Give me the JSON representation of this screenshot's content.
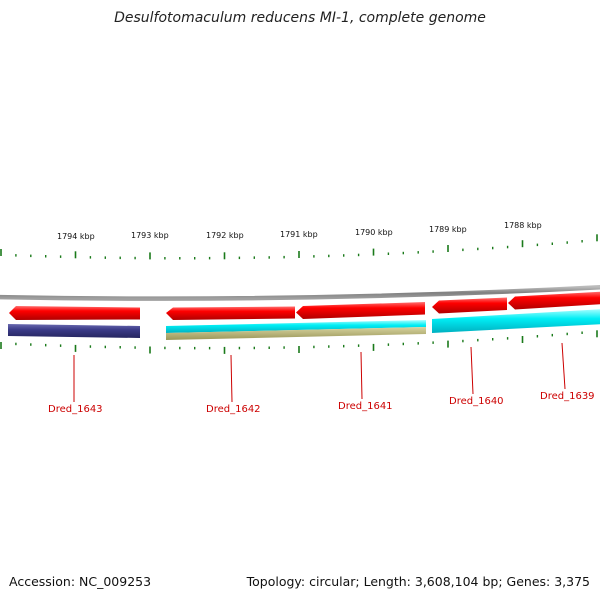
{
  "title": "Desulfotomaculum reducens MI-1, complete genome",
  "footer": {
    "accession": "Accession: NC_009253",
    "stats": "Topology: circular; Length: 3,608,104 bp; Genes: 3,375"
  },
  "scale_labels": [
    "1794 kbp",
    "1793 kbp",
    "1792 kbp",
    "1791 kbp",
    "1790 kbp",
    "1789 kbp",
    "1788 kbp"
  ],
  "gene_labels": [
    "Dred_1643",
    "Dred_1642",
    "Dred_1641",
    "Dred_1640",
    "Dred_1639"
  ],
  "colors": {
    "cds": "#ee0000",
    "feature_navy": "#3d3d8c",
    "feature_cyan": "#00e8f0",
    "feature_olive": "#b5b070",
    "ticks": "#1a7a1a",
    "backbone": "#8a8a8a",
    "label": "#cc0000"
  }
}
